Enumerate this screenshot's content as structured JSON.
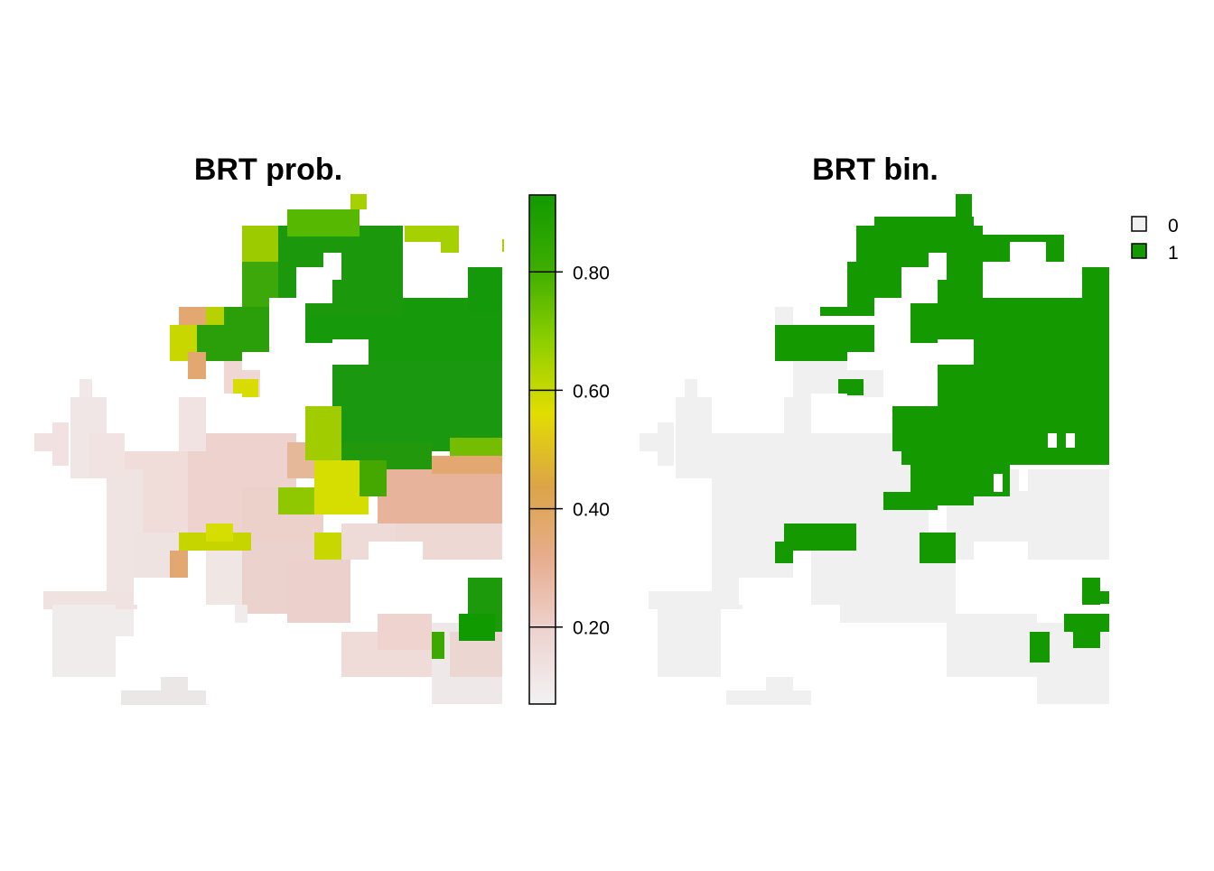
{
  "panels": [
    {
      "title": "BRT prob."
    },
    {
      "title": "BRT bin."
    }
  ],
  "colorbar": {
    "ticks": [
      {
        "value": 0.2,
        "label": "0.20"
      },
      {
        "value": 0.4,
        "label": "0.40"
      },
      {
        "value": 0.6,
        "label": "0.60"
      },
      {
        "value": 0.8,
        "label": "0.80"
      }
    ],
    "range": [
      0.07,
      0.93
    ],
    "gradient": [
      "#f2f2f2",
      "#edd3cf",
      "#e7ad8e",
      "#dca447",
      "#e2dd00",
      "#8ccf00",
      "#3cad00",
      "#129a00"
    ]
  },
  "legend": {
    "items": [
      {
        "label": "0",
        "color": "#f0f0f0"
      },
      {
        "label": "1",
        "color": "#149a00"
      }
    ]
  },
  "colors": {
    "absent": "#f0f0f0",
    "present": "#149a00"
  }
}
